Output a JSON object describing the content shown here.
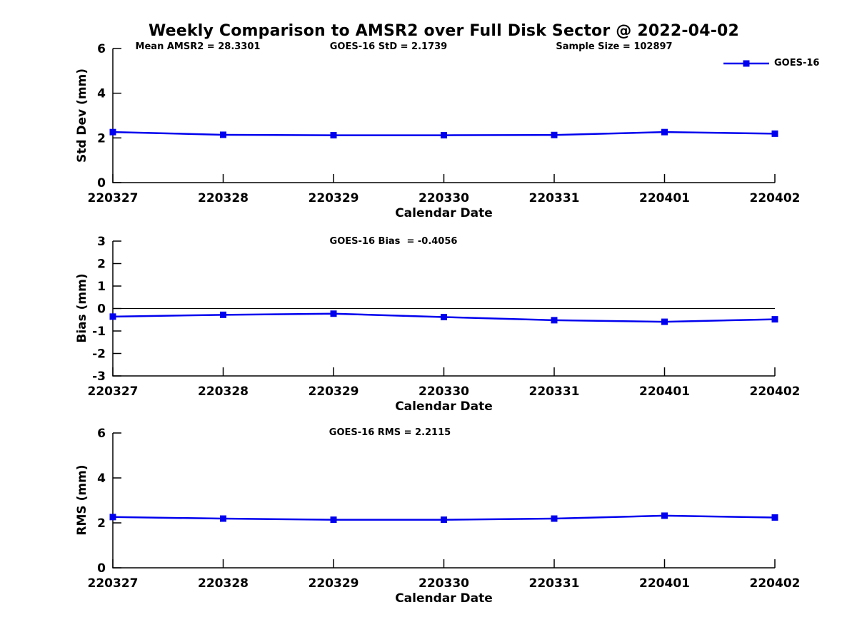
{
  "figure": {
    "title": "Weekly Comparison to AMSR2 over Full Disk Sector @ 2022-04-02"
  },
  "legend": {
    "label": "GOES-16",
    "color": "#0000EE",
    "marker": "filled-square"
  },
  "categories": [
    "220327",
    "220328",
    "220329",
    "220330",
    "220331",
    "220401",
    "220402"
  ],
  "chart_data": [
    {
      "id": "std-dev",
      "type": "line",
      "title": "",
      "xlabel": "Calendar Date",
      "ylabel": "Std Dev (mm)",
      "ylim": [
        0,
        6
      ],
      "yticks": [
        0,
        2,
        4,
        6
      ],
      "zero_line": false,
      "grid": false,
      "categories": [
        "220327",
        "220328",
        "220329",
        "220330",
        "220331",
        "220401",
        "220402"
      ],
      "series": [
        {
          "name": "GOES-16",
          "values": [
            2.26,
            2.14,
            2.12,
            2.12,
            2.13,
            2.26,
            2.19
          ]
        }
      ],
      "annotations": [
        {
          "text": "Mean AMSR2 = 28.3301"
        },
        {
          "text": "GOES-16 StD = 2.1739"
        },
        {
          "text": "Sample Size = 102897"
        }
      ]
    },
    {
      "id": "bias",
      "type": "line",
      "title": "",
      "xlabel": "Calendar Date",
      "ylabel": "Bias (mm)",
      "ylim": [
        -3,
        3
      ],
      "yticks": [
        3,
        2,
        1,
        0,
        -1,
        -2,
        -3
      ],
      "zero_line": true,
      "grid": false,
      "categories": [
        "220327",
        "220328",
        "220329",
        "220330",
        "220331",
        "220401",
        "220402"
      ],
      "series": [
        {
          "name": "GOES-16",
          "values": [
            -0.36,
            -0.28,
            -0.23,
            -0.38,
            -0.52,
            -0.59,
            -0.48
          ]
        }
      ],
      "annotations": [
        {
          "text": "GOES-16 Bias  = -0.4056"
        }
      ]
    },
    {
      "id": "rms",
      "type": "line",
      "title": "",
      "xlabel": "Calendar Date",
      "ylabel": "RMS (mm)",
      "ylim": [
        0,
        6
      ],
      "yticks": [
        0,
        2,
        4,
        6
      ],
      "zero_line": false,
      "grid": false,
      "categories": [
        "220327",
        "220328",
        "220329",
        "220330",
        "220331",
        "220401",
        "220402"
      ],
      "series": [
        {
          "name": "GOES-16",
          "values": [
            2.26,
            2.19,
            2.14,
            2.14,
            2.19,
            2.32,
            2.24
          ]
        }
      ],
      "annotations": [
        {
          "text": "GOES-16 RMS = 2.2115"
        }
      ]
    }
  ]
}
